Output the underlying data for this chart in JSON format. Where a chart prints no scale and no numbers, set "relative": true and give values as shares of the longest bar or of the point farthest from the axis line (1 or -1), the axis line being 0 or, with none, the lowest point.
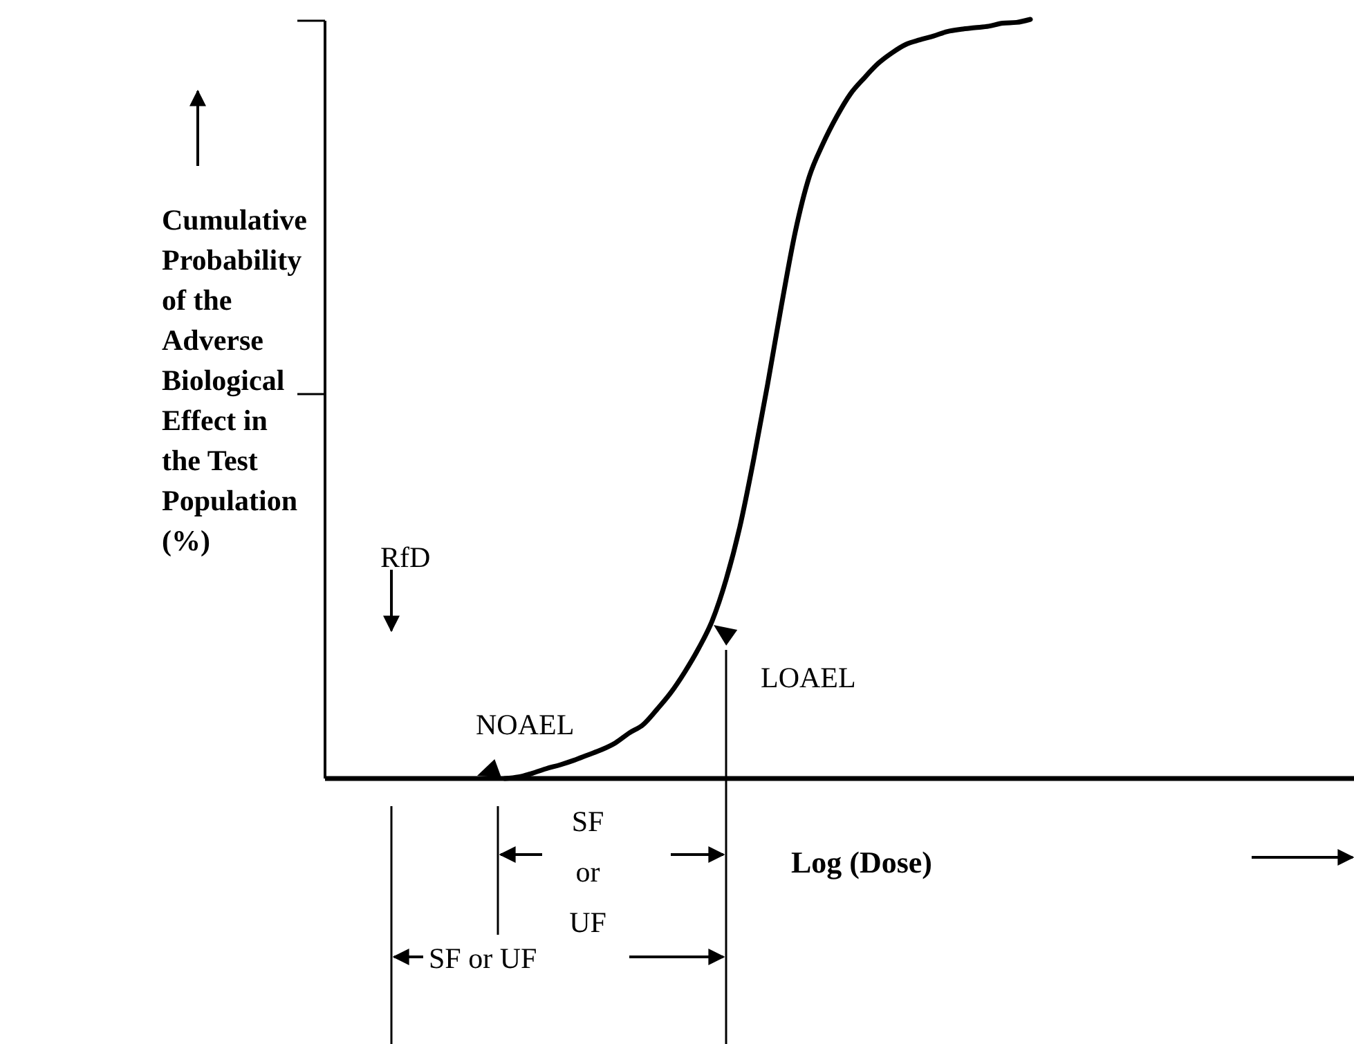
{
  "chart_data": {
    "type": "line",
    "relative": true,
    "xlabel": "Log (Dose)",
    "ylabel": "Cumulative Probability of the Adverse Biological Effect in the Test Population (%)",
    "categories": [
      null,
      null,
      null,
      null,
      null,
      null,
      null,
      null,
      null,
      null,
      null,
      null,
      null,
      null,
      null,
      null,
      null,
      null,
      null,
      null,
      null,
      null,
      null,
      null,
      null,
      null,
      null,
      null,
      null,
      null,
      null,
      null,
      null,
      null,
      null,
      null,
      null,
      null,
      null,
      null,
      null,
      null,
      null,
      null,
      null,
      null,
      null,
      null,
      null,
      null,
      null,
      null,
      null,
      null,
      null,
      null,
      null,
      null,
      null,
      null,
      null,
      null,
      null,
      null,
      null,
      null,
      null,
      null,
      null,
      null,
      null,
      null,
      null,
      null,
      null
    ],
    "series": [
      {
        "color": "#000000",
        "values": [
          null,
          null,
          null,
          null,
          null,
          null,
          null,
          null,
          null,
          null,
          null,
          null,
          null,
          0,
          0.002,
          0.007,
          0.013,
          0.018,
          0.024,
          0.031,
          0.038,
          0.047,
          0.06,
          0.071,
          0.091,
          0.113,
          0.14,
          0.171,
          0.208,
          0.262,
          0.332,
          0.421,
          0.519,
          0.623,
          0.72,
          0.792,
          0.836,
          0.872,
          0.902,
          0.923,
          0.942,
          0.956,
          0.967,
          0.973,
          0.978,
          0.984,
          0.987,
          0.989,
          0.991,
          0.995,
          0.996,
          1,
          null,
          null,
          null,
          null,
          null,
          null,
          null,
          null,
          null,
          null,
          null,
          null,
          null,
          null,
          null,
          null,
          null,
          null,
          null,
          null,
          null,
          null,
          null
        ]
      }
    ],
    "marker": "none",
    "line_style": "solid",
    "grid": false,
    "annotations": [
      "RfD",
      "NOAEL",
      "LOAEL",
      "SF or UF",
      "SF or UF"
    ]
  }
}
